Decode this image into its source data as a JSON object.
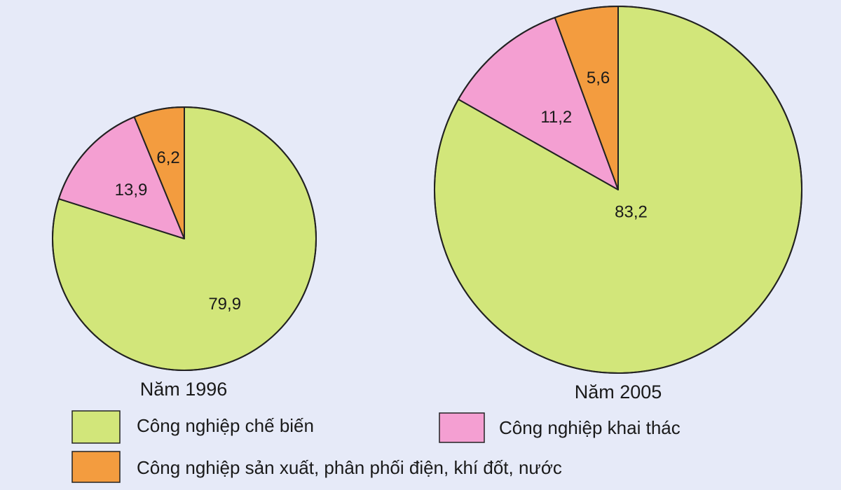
{
  "chart_data": {
    "type": "pie",
    "categories": [
      "Công  nghiệp chế biến",
      "Công nghiệp khai thác",
      "Công nghiệp sản xuất, phân phối điện, khí đốt, nước"
    ],
    "colors": [
      "#d2e67a",
      "#f49fd2",
      "#f39c3f"
    ],
    "series": [
      {
        "name": "Năm 1996",
        "values": [
          79.9,
          13.9,
          6.2
        ],
        "value_labels": [
          "79,9",
          "13,9",
          "6,2"
        ]
      },
      {
        "name": "Năm 2005",
        "values": [
          83.2,
          11.2,
          5.6
        ],
        "value_labels": [
          "83,2",
          "11,2",
          "5,6"
        ]
      }
    ],
    "start_angle": "top",
    "direction": "clockwise",
    "legend_position": "bottom"
  }
}
